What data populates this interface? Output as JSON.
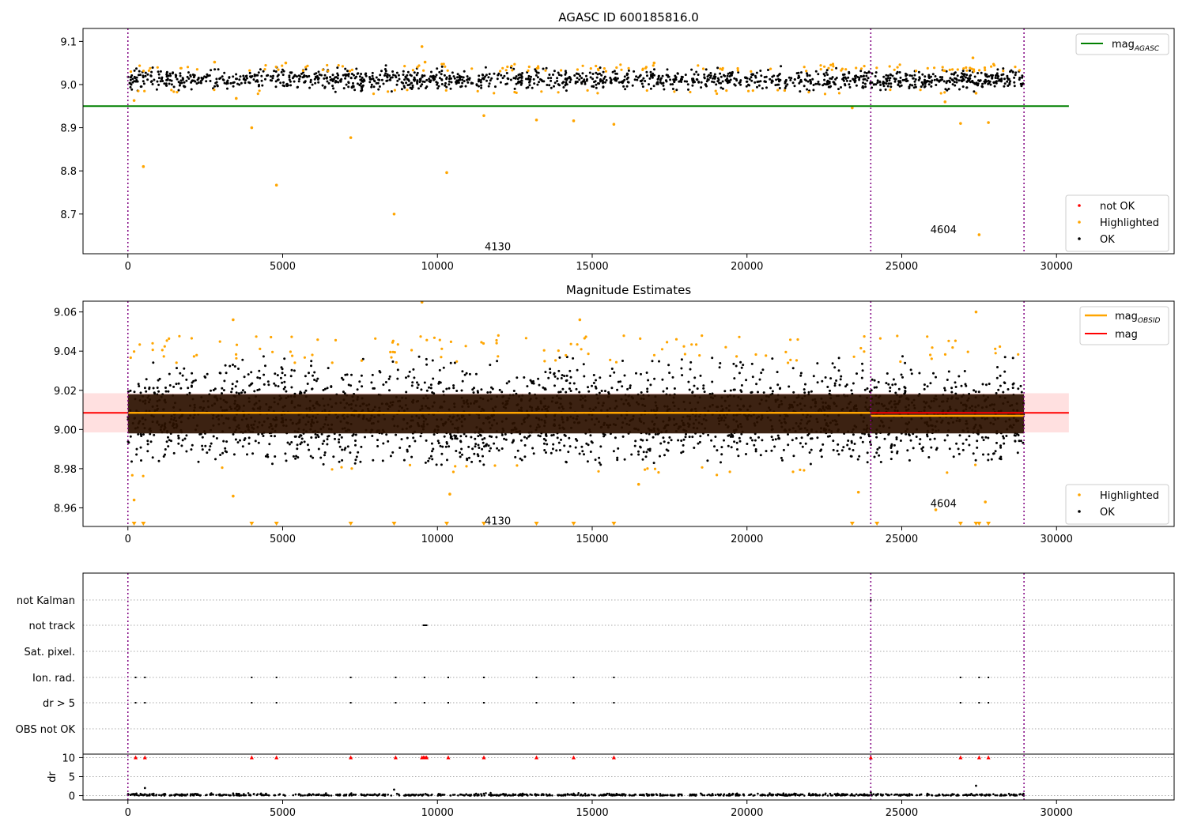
{
  "chart_data": [
    {
      "type": "scatter",
      "title": "AGASC ID 600185816.0",
      "xlim": [
        -1450,
        33800
      ],
      "ylim": [
        8.608,
        9.13
      ],
      "xticks": [
        "0",
        "5000",
        "10000",
        "15000",
        "20000",
        "25000",
        "30000"
      ],
      "xtick_values": [
        0,
        5000,
        10000,
        15000,
        20000,
        25000,
        30000
      ],
      "yticks": [
        "8.7",
        "8.8",
        "8.9",
        "9.0",
        "9.1"
      ],
      "ytick_values": [
        8.7,
        8.8,
        8.9,
        9.0,
        9.1
      ],
      "vlines": [
        0,
        24000,
        28950
      ],
      "annotations": [
        {
          "text": "4130",
          "x": 11950,
          "y": 8.625
        },
        {
          "text": "4604",
          "x": 26350,
          "y": 8.665
        }
      ],
      "hline": {
        "name": "mag_AGASC",
        "y": 8.95,
        "x_range": [
          -1450,
          30400
        ],
        "color": "#008000"
      },
      "ok_band": {
        "x_range": [
          0,
          28950
        ],
        "y_center": 9.012,
        "y_spread": 0.022
      },
      "ok_density": 1400,
      "highlighted_band_points": 160,
      "highlighted": [
        [
          500,
          8.81
        ],
        [
          4800,
          8.767
        ],
        [
          7200,
          8.877
        ],
        [
          8600,
          8.7
        ],
        [
          10300,
          8.796
        ],
        [
          9500,
          9.088
        ],
        [
          11500,
          8.928
        ],
        [
          13200,
          8.918
        ],
        [
          14400,
          8.916
        ],
        [
          15700,
          8.908
        ],
        [
          4000,
          8.9
        ],
        [
          3500,
          8.968
        ],
        [
          200,
          8.963
        ],
        [
          26900,
          8.91
        ],
        [
          27400,
          8.98
        ],
        [
          27800,
          8.912
        ],
        [
          27500,
          8.652
        ],
        [
          23400,
          8.946
        ],
        [
          26400,
          8.96
        ],
        [
          2800,
          9.052
        ],
        [
          5100,
          9.05
        ],
        [
          9600,
          9.052
        ],
        [
          17000,
          9.05
        ],
        [
          27300,
          9.062
        ]
      ],
      "legend": {
        "position": "top-right",
        "entries": [
          "mag_AGASC"
        ]
      },
      "legend2": {
        "position": "bottom-right",
        "entries": [
          {
            "label": "not OK",
            "color": "#ff0000"
          },
          {
            "label": "Highlighted",
            "color": "#ffa500"
          },
          {
            "label": "OK",
            "color": "#000000"
          }
        ]
      }
    },
    {
      "type": "scatter",
      "title": "Magnitude Estimates",
      "xlim": [
        -1450,
        33800
      ],
      "ylim": [
        8.9505,
        9.0655
      ],
      "xticks": [
        "0",
        "5000",
        "10000",
        "15000",
        "20000",
        "25000",
        "30000"
      ],
      "xtick_values": [
        0,
        5000,
        10000,
        15000,
        20000,
        25000,
        30000
      ],
      "yticks": [
        "8.96",
        "8.98",
        "9.00",
        "9.02",
        "9.04",
        "9.06"
      ],
      "ytick_values": [
        8.96,
        8.98,
        9.0,
        9.02,
        9.04,
        9.06
      ],
      "vlines": [
        0,
        24000,
        28950
      ],
      "annotations": [
        {
          "text": "4130",
          "x": 11950,
          "y": 8.9535
        },
        {
          "text": "4604",
          "x": 26350,
          "y": 8.9625
        }
      ],
      "mag_line": {
        "name": "mag",
        "y": 9.0085,
        "x_range": [
          -1450,
          30400
        ],
        "color": "#ff0000"
      },
      "mag_band": {
        "y_range": [
          8.9985,
          9.0185
        ],
        "x_range": [
          -1450,
          30400
        ],
        "color": "#ff0000"
      },
      "obsid_segments": [
        {
          "x_range": [
            0,
            24000
          ],
          "y": 9.0085
        },
        {
          "x_range": [
            24000,
            28950
          ],
          "y": 9.007
        }
      ],
      "ok_band": {
        "x_range": [
          0,
          28950
        ],
        "y_center": 9.007,
        "y_spread": 0.013
      },
      "ok_density": 2600,
      "dense_band": {
        "x_range": [
          0,
          28950
        ],
        "y_range": [
          8.998,
          9.018
        ],
        "color": "#2b1100"
      },
      "highlighted_band_points": 140,
      "highlighted_low_triangles_x": [
        200,
        500,
        4000,
        4800,
        7200,
        8600,
        10300,
        11500,
        13200,
        14400,
        15700,
        23400,
        24200,
        26900,
        27400,
        27500,
        27800
      ],
      "highlighted": [
        [
          9500,
          9.065
        ],
        [
          14600,
          9.056
        ],
        [
          3400,
          9.056
        ],
        [
          200,
          8.964
        ],
        [
          10400,
          8.967
        ],
        [
          3400,
          8.966
        ],
        [
          16500,
          8.972
        ],
        [
          26100,
          8.959
        ],
        [
          27700,
          8.963
        ],
        [
          23600,
          8.968
        ],
        [
          27400,
          9.06
        ]
      ],
      "legend": {
        "position": "top-right",
        "entries": [
          "mag_OBSID",
          "mag"
        ]
      },
      "legend2": {
        "position": "bottom-right",
        "entries": [
          {
            "label": "Highlighted",
            "color": "#ffa500"
          },
          {
            "label": "OK",
            "color": "#000000"
          }
        ]
      }
    },
    {
      "type": "scatter",
      "title": "",
      "xlim": [
        -1450,
        33800
      ],
      "flag_rows": [
        "not Kalman",
        "not track",
        "Sat. pixel.",
        "Ion. rad.",
        "dr > 5",
        "OBS not OK"
      ],
      "flag_points": {
        "not Kalman": [
          24000
        ],
        "not track": [
          9550,
          9580,
          9600,
          9620,
          9650
        ],
        "Sat. pixel.": [],
        "Ion. rad.": [
          250,
          550,
          4000,
          4800,
          7200,
          8650,
          9580,
          10350,
          11500,
          13200,
          14400,
          15700,
          26900,
          27500,
          27800
        ],
        "dr > 5": [
          250,
          550,
          4000,
          4800,
          7200,
          8650,
          9580,
          10350,
          11500,
          13200,
          14400,
          15700,
          26900,
          27500,
          27800
        ],
        "OBS not OK": []
      },
      "dr_yticks": [
        "0",
        "5",
        "10"
      ],
      "dr_tick_values": [
        0,
        5,
        10
      ],
      "dr_ylabel": "dr",
      "dr_ylim": [
        -0.3,
        10.3
      ],
      "dr_red_triangles_x": [
        250,
        550,
        4000,
        4800,
        7200,
        8650,
        9500,
        9550,
        9600,
        9650,
        10350,
        11500,
        13200,
        14400,
        15700,
        24000,
        26900,
        27500,
        27800
      ],
      "dr_outliers": [
        [
          550,
          2.0
        ],
        [
          8600,
          1.6
        ],
        [
          27400,
          2.6
        ],
        [
          24000,
          0.9
        ]
      ],
      "xticks": [
        "0",
        "5000",
        "10000",
        "15000",
        "20000",
        "25000",
        "30000"
      ],
      "xtick_values": [
        0,
        5000,
        10000,
        15000,
        20000,
        25000,
        30000
      ],
      "vlines": [
        0,
        24000,
        28950
      ]
    }
  ]
}
